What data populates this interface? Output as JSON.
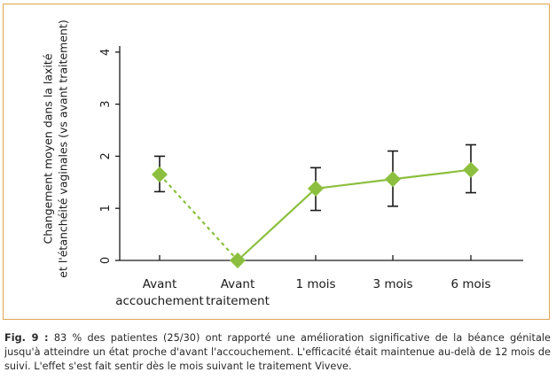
{
  "chart_data": {
    "type": "line",
    "categories": [
      [
        "Avant",
        "accouchement"
      ],
      [
        "Avant",
        "traitement"
      ],
      [
        "1 mois"
      ],
      [
        "3 mois"
      ],
      [
        "6 mois"
      ]
    ],
    "y_label_lines": [
      "Changement moyen dans la laxité",
      "et l'étanchéité vaginales (vs avant traitement)"
    ],
    "ylim": [
      0,
      4
    ],
    "yticks": [
      0,
      1,
      2,
      3,
      4
    ],
    "values": [
      1.65,
      0.0,
      1.38,
      1.56,
      1.74
    ],
    "error_low": [
      1.32,
      0.0,
      0.96,
      1.04,
      1.3
    ],
    "error_high": [
      2.0,
      0.0,
      1.78,
      2.1,
      2.22
    ],
    "dashed_segments": [
      [
        0,
        1
      ]
    ],
    "series_color": "#8cbf3f",
    "error_bar_color": "#1a1a1a",
    "grid": false
  },
  "caption": {
    "label": "Fig. 9 :",
    "text": " 83 % des patientes (25/30) ont rapporté une amélioration significative de la béance génitale jusqu'à atteindre un état proche d'avant l'accouchement. L'efficacité était maintenue au-delà de 12 mois de suivi. L'effet s'est fait sentir dès le mois suivant le traitement Viveve."
  },
  "colors": {
    "frame_border": "#e2a34e",
    "axis": "#1a1a1a"
  }
}
